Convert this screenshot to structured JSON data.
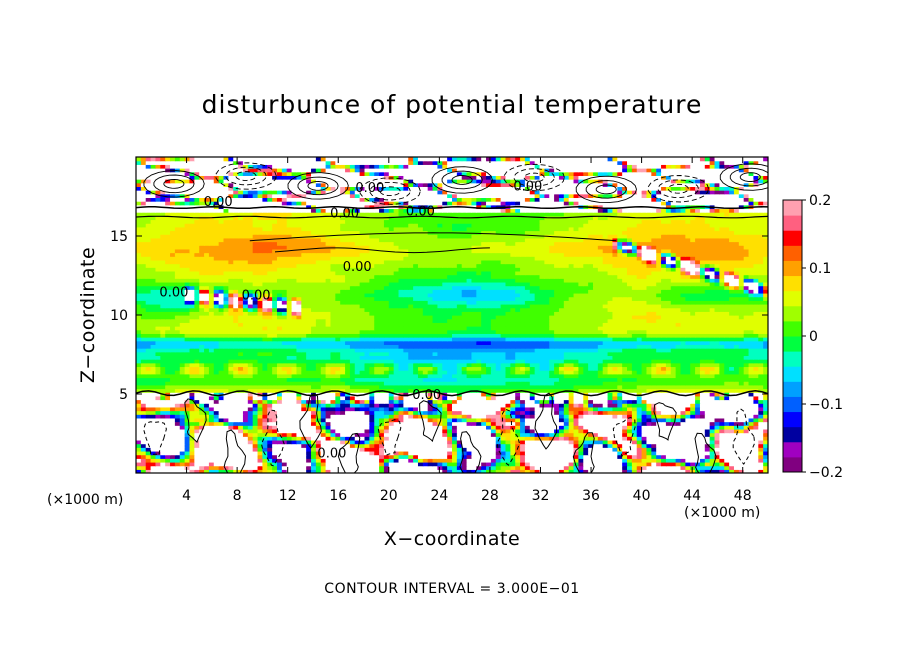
{
  "chart_data": {
    "type": "heatmap",
    "title": "disturbunce of potential temperature",
    "xlabel": "X−coordinate",
    "ylabel": "Z−coordinate",
    "x_unit": "(×1000 m)",
    "z_unit": "(×1000 m)",
    "footer": "CONTOUR INTERVAL = 3.000E−01",
    "xlim": [
      0,
      50
    ],
    "ylim": [
      0,
      20
    ],
    "x_ticks": [
      4,
      8,
      12,
      16,
      20,
      24,
      28,
      32,
      36,
      40,
      44,
      48
    ],
    "x_tick_labels": [
      "4",
      "8",
      "12",
      "16",
      "20",
      "24",
      "28",
      "32",
      "36",
      "40",
      "44",
      "48"
    ],
    "y_ticks": [
      5,
      10,
      15
    ],
    "y_tick_labels": [
      "5",
      "10",
      "15"
    ],
    "colorbar": {
      "range": [
        -0.2,
        0.2
      ],
      "ticks": [
        0.2,
        0.1,
        0,
        -0.1,
        -0.2
      ],
      "tick_labels": [
        "0.2",
        "0.1",
        "0",
        "−0.1",
        "−0.2"
      ],
      "colors": [
        "#800080",
        "#a000c0",
        "#0000a0",
        "#0000ff",
        "#0060ff",
        "#00a0ff",
        "#00e0ff",
        "#00ffc0",
        "#00ff40",
        "#40ff00",
        "#a0ff00",
        "#e0ff00",
        "#ffe000",
        "#ffa000",
        "#ff6000",
        "#ff0000",
        "#ff6080",
        "#ffa0b0"
      ]
    },
    "contour_labels": [
      {
        "text": "0.00",
        "x": 18.5,
        "y": 18.1
      },
      {
        "text": "0.00",
        "x": 6.5,
        "y": 17.2
      },
      {
        "text": "0.00",
        "x": 31,
        "y": 18.2
      },
      {
        "text": "0.00",
        "x": 16.5,
        "y": 16.5
      },
      {
        "text": "0.00",
        "x": 22.5,
        "y": 16.6
      },
      {
        "text": "0.00",
        "x": 17.5,
        "y": 13.1
      },
      {
        "text": "0.00",
        "x": 3,
        "y": 11.5
      },
      {
        "text": "0.00",
        "x": 9.5,
        "y": 11.3
      },
      {
        "text": "0.00",
        "x": 23,
        "y": 5
      },
      {
        "text": "0.00",
        "x": 15.5,
        "y": 1.3
      }
    ]
  }
}
